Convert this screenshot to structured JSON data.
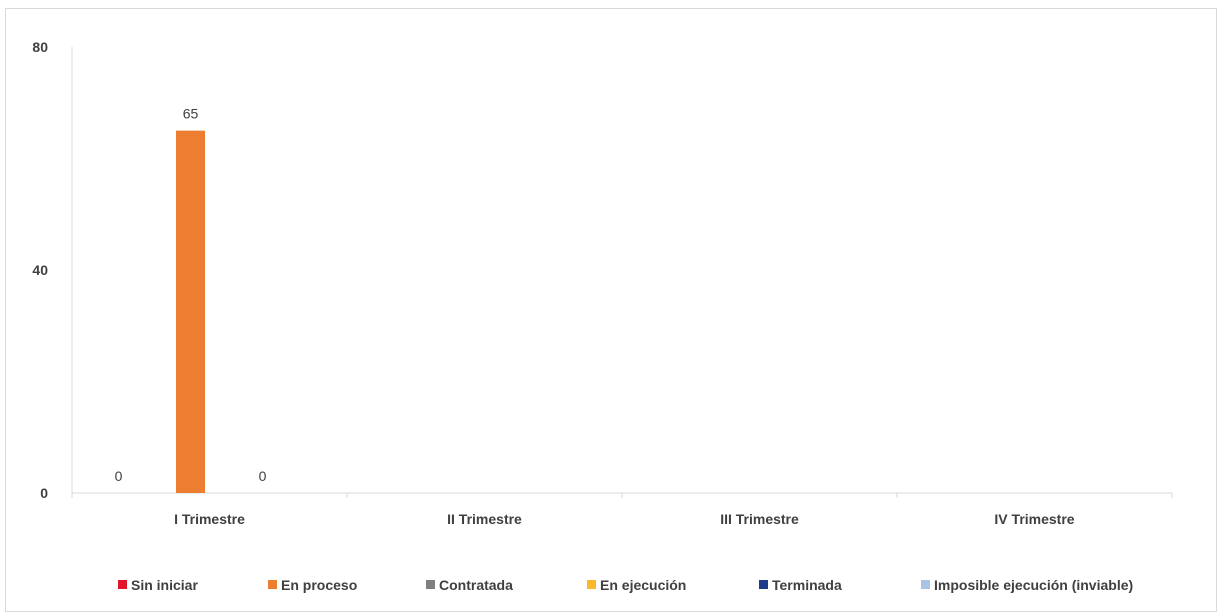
{
  "chart_data": {
    "type": "bar",
    "categories": [
      "I Trimestre",
      "II Trimestre",
      "III Trimestre",
      "IV Trimestre"
    ],
    "series": [
      {
        "name": "Sin iniciar",
        "color": "#e0162b",
        "values": [
          0,
          null,
          null,
          null
        ],
        "labels": [
          "0",
          "",
          "",
          ""
        ]
      },
      {
        "name": "En proceso",
        "color": "#ed7d31",
        "values": [
          65,
          null,
          null,
          null
        ],
        "labels": [
          "65",
          "",
          "",
          ""
        ]
      },
      {
        "name": "Contratada",
        "color": "#7f7f7f",
        "values": [
          0,
          null,
          null,
          null
        ],
        "labels": [
          "0",
          "",
          "",
          ""
        ]
      },
      {
        "name": "En ejecución",
        "color": "#fbb92a",
        "values": [
          null,
          null,
          null,
          null
        ],
        "labels": [
          "",
          "",
          "",
          ""
        ]
      },
      {
        "name": "Terminada",
        "color": "#1f3a8a",
        "values": [
          null,
          null,
          null,
          null
        ],
        "labels": [
          "",
          "",
          "",
          ""
        ]
      },
      {
        "name": "Imposible ejecución (inviable)",
        "color": "#a9c4e4",
        "values": [
          null,
          null,
          null,
          null
        ],
        "labels": [
          "",
          "",
          "",
          ""
        ]
      }
    ],
    "yticks": [
      "0",
      "40",
      "80"
    ],
    "ylim": [
      0,
      80
    ],
    "grid": false,
    "legend_position": "bottom"
  }
}
